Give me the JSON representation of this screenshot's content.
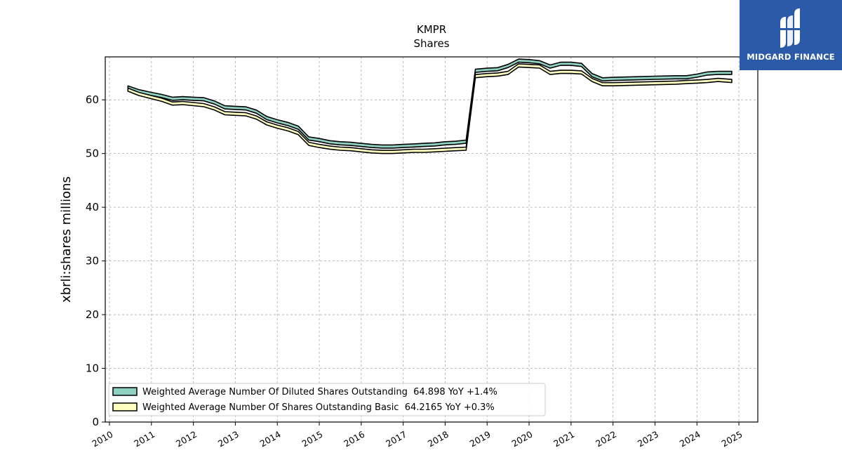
{
  "logo": {
    "text": "MIDGARD FINANCE",
    "icon": "midgard-logo-icon",
    "color": "#2a5aa8"
  },
  "chart_data": {
    "type": "area",
    "title": "KMPR",
    "subtitle": "Shares",
    "ylabel": "xbrli:shares millions",
    "xlabel": "",
    "xlim": [
      2009.9,
      2025.45
    ],
    "ylim": [
      0,
      68
    ],
    "y_ticks": [
      0,
      10,
      20,
      30,
      40,
      50,
      60
    ],
    "x_ticks": [
      "2010",
      "2011",
      "2012",
      "2013",
      "2014",
      "2015",
      "2016",
      "2017",
      "2018",
      "2019",
      "2020",
      "2021",
      "2022",
      "2023",
      "2024",
      "2025"
    ],
    "grid": true,
    "legend_position": "lower-left",
    "series": [
      {
        "name": "Weighted Average Number Of Diluted Shares Outstanding  64.898 YoY +1.4%",
        "color": "#8fd1c2",
        "points": [
          [
            2010.44,
            62.6
          ],
          [
            2010.7,
            61.9
          ],
          [
            2011.0,
            61.4
          ],
          [
            2011.25,
            61.0
          ],
          [
            2011.5,
            60.5
          ],
          [
            2011.75,
            60.6
          ],
          [
            2012.0,
            60.5
          ],
          [
            2012.25,
            60.4
          ],
          [
            2012.5,
            59.8
          ],
          [
            2012.75,
            58.9
          ],
          [
            2013.0,
            58.8
          ],
          [
            2013.25,
            58.7
          ],
          [
            2013.5,
            58.1
          ],
          [
            2013.75,
            56.9
          ],
          [
            2014.0,
            56.3
          ],
          [
            2014.25,
            55.8
          ],
          [
            2014.5,
            55.1
          ],
          [
            2014.75,
            53.1
          ],
          [
            2015.0,
            52.8
          ],
          [
            2015.25,
            52.4
          ],
          [
            2015.5,
            52.2
          ],
          [
            2015.75,
            52.1
          ],
          [
            2016.0,
            51.9
          ],
          [
            2016.25,
            51.7
          ],
          [
            2016.5,
            51.6
          ],
          [
            2016.75,
            51.6
          ],
          [
            2017.0,
            51.7
          ],
          [
            2017.25,
            51.8
          ],
          [
            2017.5,
            51.9
          ],
          [
            2017.75,
            52.0
          ],
          [
            2018.0,
            52.2
          ],
          [
            2018.25,
            52.3
          ],
          [
            2018.5,
            52.5
          ],
          [
            2018.72,
            65.7
          ],
          [
            2019.0,
            65.9
          ],
          [
            2019.25,
            66.0
          ],
          [
            2019.5,
            66.6
          ],
          [
            2019.75,
            67.6
          ],
          [
            2020.0,
            67.5
          ],
          [
            2020.25,
            67.3
          ],
          [
            2020.5,
            66.5
          ],
          [
            2020.75,
            67.0
          ],
          [
            2021.0,
            67.0
          ],
          [
            2021.25,
            66.8
          ],
          [
            2021.5,
            64.9
          ],
          [
            2021.75,
            64.1
          ],
          [
            2022.0,
            64.2
          ],
          [
            2022.5,
            64.3
          ],
          [
            2023.0,
            64.4
          ],
          [
            2023.5,
            64.5
          ],
          [
            2023.75,
            64.5
          ],
          [
            2024.0,
            64.8
          ],
          [
            2024.25,
            65.2
          ],
          [
            2024.5,
            65.3
          ],
          [
            2024.83,
            65.3
          ]
        ]
      },
      {
        "name": "Weighted Average Number Of Shares Outstanding Basic  64.2165 YoY +0.3%",
        "color": "#ffffbf",
        "points": [
          [
            2010.44,
            62.2
          ],
          [
            2010.7,
            61.4
          ],
          [
            2011.0,
            60.8
          ],
          [
            2011.25,
            60.3
          ],
          [
            2011.5,
            59.6
          ],
          [
            2011.75,
            59.7
          ],
          [
            2012.0,
            59.5
          ],
          [
            2012.25,
            59.3
          ],
          [
            2012.5,
            58.7
          ],
          [
            2012.75,
            57.8
          ],
          [
            2013.0,
            57.7
          ],
          [
            2013.25,
            57.6
          ],
          [
            2013.5,
            57.0
          ],
          [
            2013.75,
            55.9
          ],
          [
            2014.0,
            55.3
          ],
          [
            2014.25,
            54.8
          ],
          [
            2014.5,
            54.1
          ],
          [
            2014.75,
            52.1
          ],
          [
            2015.0,
            51.7
          ],
          [
            2015.25,
            51.4
          ],
          [
            2015.5,
            51.2
          ],
          [
            2015.75,
            51.1
          ],
          [
            2016.0,
            50.9
          ],
          [
            2016.25,
            50.7
          ],
          [
            2016.5,
            50.6
          ],
          [
            2016.75,
            50.6
          ],
          [
            2017.0,
            50.7
          ],
          [
            2017.25,
            50.8
          ],
          [
            2017.5,
            50.8
          ],
          [
            2017.75,
            50.9
          ],
          [
            2018.0,
            51.0
          ],
          [
            2018.25,
            51.1
          ],
          [
            2018.5,
            51.2
          ],
          [
            2018.72,
            64.7
          ],
          [
            2019.0,
            64.9
          ],
          [
            2019.25,
            65.0
          ],
          [
            2019.5,
            65.3
          ],
          [
            2019.75,
            66.7
          ],
          [
            2020.0,
            66.6
          ],
          [
            2020.25,
            66.5
          ],
          [
            2020.5,
            65.3
          ],
          [
            2020.75,
            65.5
          ],
          [
            2021.0,
            65.5
          ],
          [
            2021.25,
            65.4
          ],
          [
            2021.5,
            64.0
          ],
          [
            2021.75,
            63.2
          ],
          [
            2022.0,
            63.2
          ],
          [
            2022.5,
            63.3
          ],
          [
            2023.0,
            63.4
          ],
          [
            2023.5,
            63.5
          ],
          [
            2023.75,
            63.6
          ],
          [
            2024.0,
            63.7
          ],
          [
            2024.25,
            63.8
          ],
          [
            2024.5,
            64.0
          ],
          [
            2024.83,
            63.8
          ]
        ]
      }
    ]
  }
}
